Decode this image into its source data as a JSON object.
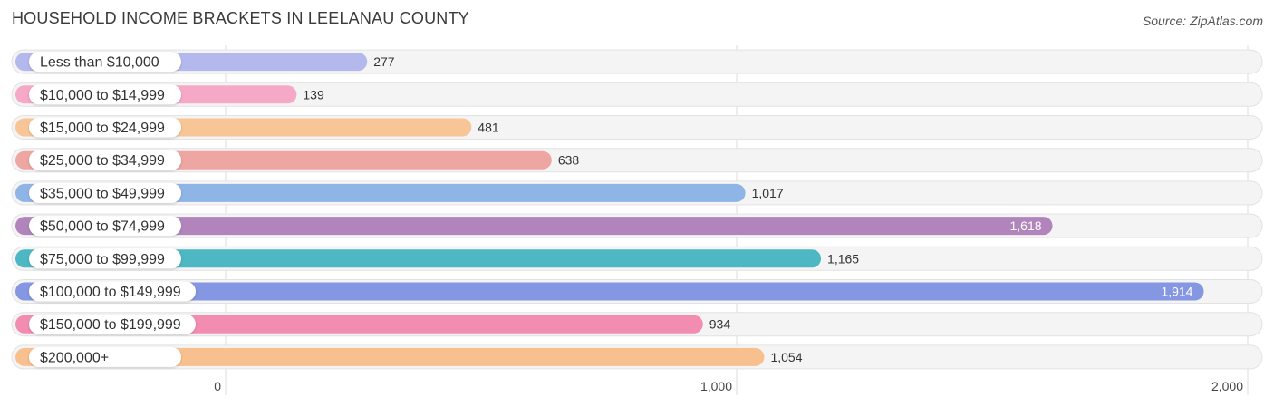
{
  "title": "HOUSEHOLD INCOME BRACKETS IN LEELANAU COUNTY",
  "source": "Source: ZipAtlas.com",
  "chart_data": {
    "type": "bar",
    "orientation": "horizontal",
    "title": "HOUSEHOLD INCOME BRACKETS IN LEELANAU COUNTY",
    "xlabel": "",
    "ylabel": "",
    "xlim": [
      0,
      2000
    ],
    "grid": true,
    "categories": [
      "Less than $10,000",
      "$10,000 to $14,999",
      "$15,000 to $24,999",
      "$25,000 to $34,999",
      "$35,000 to $49,999",
      "$50,000 to $74,999",
      "$75,000 to $99,999",
      "$100,000 to $149,999",
      "$150,000 to $199,999",
      "$200,000+"
    ],
    "values": [
      277,
      139,
      481,
      638,
      1017,
      1618,
      1165,
      1914,
      934,
      1054
    ],
    "value_labels": [
      "277",
      "139",
      "481",
      "638",
      "1,017",
      "1,618",
      "1,165",
      "1,914",
      "934",
      "1,054"
    ],
    "colors": [
      "#b3b9ec",
      "#f5a9c6",
      "#f8c596",
      "#eda6a2",
      "#8fb4e6",
      "#b185bc",
      "#4db7c3",
      "#8597e2",
      "#f28cb1",
      "#f8c08f"
    ],
    "ticks": [
      0,
      1000,
      2000
    ],
    "tick_labels": [
      "0",
      "1,000",
      "2,000"
    ]
  }
}
